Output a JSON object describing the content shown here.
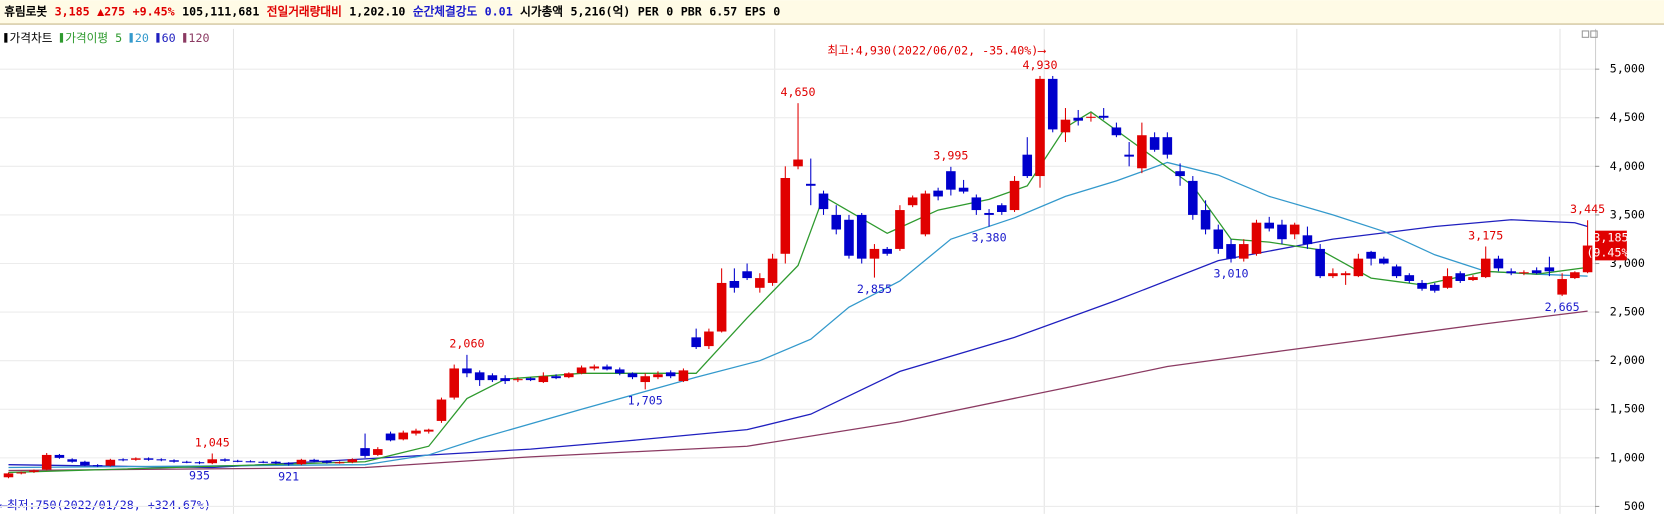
{
  "header": {
    "items": [
      {
        "text": "휴림로봇",
        "color": "#000000"
      },
      {
        "text": "3,185",
        "color": "#e00000"
      },
      {
        "text": "▲275",
        "color": "#e00000"
      },
      {
        "text": "+9.45%",
        "color": "#e00000"
      },
      {
        "text": "105,111,681",
        "color": "#000000"
      },
      {
        "text": "전일거래량대비",
        "color": "#e00000"
      },
      {
        "text": "1,202.10",
        "color": "#000000"
      },
      {
        "text": "순간체결강도",
        "color": "#1a1acc"
      },
      {
        "text": "0.01",
        "color": "#1a1acc"
      },
      {
        "text": "시가총액",
        "color": "#000000"
      },
      {
        "text": "5,216(억)",
        "color": "#000000"
      },
      {
        "text": "PER",
        "color": "#000000"
      },
      {
        "text": "0",
        "color": "#000000"
      },
      {
        "text": "PBR",
        "color": "#000000"
      },
      {
        "text": "6.57",
        "color": "#000000"
      },
      {
        "text": "EPS",
        "color": "#000000"
      },
      {
        "text": "0",
        "color": "#000000"
      }
    ]
  },
  "chart_data": {
    "type": "candlestick",
    "ylim": [
      424,
      5415
    ],
    "yticks": [
      500,
      {
        "value": 1000,
        "label": "1,000"
      },
      {
        "value": 1500,
        "label": "1,500"
      },
      {
        "value": 2000,
        "label": "2,000"
      },
      {
        "value": 2500,
        "label": "2,500"
      },
      {
        "value": 3000,
        "label": "3,000"
      },
      {
        "value": 3500,
        "label": "3,500"
      },
      {
        "value": 4000,
        "label": "4,000"
      },
      {
        "value": 4500,
        "label": "4,500"
      },
      {
        "value": 5000,
        "label": "5,000"
      }
    ],
    "grid": true,
    "candles": {
      "name": "가격차트",
      "color": "#000000",
      "up_color": "#e00000",
      "down_color": "#0000cc",
      "open": [
        800,
        840,
        855,
        880,
        1030,
        985,
        960,
        925,
        920,
        985,
        980,
        995,
        985,
        975,
        960,
        955,
        945,
        985,
        970,
        965,
        960,
        960,
        945,
        935,
        980,
        965,
        950,
        955,
        1100,
        1030,
        1250,
        1190,
        1250,
        1270,
        1380,
        1620,
        1920,
        1880,
        1850,
        1820,
        1800,
        1820,
        1780,
        1840,
        1830,
        1870,
        1920,
        1940,
        1910,
        1870,
        1780,
        1830,
        1880,
        1790,
        2240,
        2150,
        2300,
        2820,
        2920,
        2750,
        2800,
        3100,
        4000,
        3820,
        3720,
        3500,
        3450,
        3500,
        3050,
        3150,
        3150,
        3600,
        3300,
        3750,
        3950,
        3780,
        3680,
        3520,
        3600,
        3550,
        4120,
        3900,
        4900,
        4350,
        4500,
        4500,
        4520,
        4400,
        4120,
        3980,
        4300,
        4300,
        3950,
        3850,
        3550,
        3350,
        3200,
        3050,
        3100,
        3420,
        3400,
        3300,
        3290,
        3150,
        2870,
        2880,
        2870,
        3120,
        3050,
        2970,
        2880,
        2800,
        2780,
        2750,
        2900,
        2830,
        2860,
        3050,
        2920,
        2900,
        2930,
        2960,
        2680,
        2850,
        2910
      ],
      "high": [
        850,
        860,
        880,
        1050,
        1040,
        995,
        970,
        935,
        990,
        995,
        1005,
        1005,
        995,
        985,
        970,
        965,
        1045,
        995,
        980,
        975,
        970,
        970,
        955,
        990,
        990,
        975,
        965,
        995,
        1250,
        1110,
        1270,
        1280,
        1300,
        1300,
        1620,
        1960,
        2060,
        1900,
        1870,
        1850,
        1830,
        1830,
        1880,
        1860,
        1880,
        1950,
        1960,
        1960,
        1930,
        1880,
        1870,
        1890,
        1900,
        1920,
        2330,
        2330,
        2950,
        2950,
        3000,
        2900,
        3100,
        4000,
        4650,
        4080,
        3750,
        3600,
        3500,
        3520,
        3200,
        3170,
        3600,
        3700,
        3750,
        3780,
        3995,
        3860,
        3710,
        3560,
        3620,
        3900,
        4300,
        4930,
        4930,
        4600,
        4580,
        4550,
        4600,
        4450,
        4250,
        4450,
        4350,
        4350,
        4030,
        3900,
        3650,
        3400,
        3250,
        3250,
        3450,
        3480,
        3450,
        3420,
        3380,
        3200,
        2950,
        2920,
        3100,
        3130,
        3070,
        2990,
        2900,
        2830,
        2800,
        2950,
        2920,
        2880,
        3175,
        3080,
        2950,
        2930,
        2960,
        3070,
        2900,
        2920,
        3445
      ],
      "low": [
        790,
        830,
        845,
        870,
        990,
        950,
        915,
        905,
        910,
        965,
        970,
        970,
        965,
        950,
        945,
        935,
        935,
        960,
        955,
        955,
        945,
        935,
        921,
        925,
        955,
        940,
        940,
        945,
        1000,
        1020,
        1170,
        1180,
        1230,
        1250,
        1360,
        1600,
        1830,
        1740,
        1780,
        1760,
        1780,
        1790,
        1770,
        1810,
        1820,
        1860,
        1900,
        1900,
        1850,
        1810,
        1705,
        1810,
        1820,
        1780,
        2120,
        2120,
        2290,
        2700,
        2830,
        2700,
        2770,
        3000,
        3970,
        3600,
        3500,
        3300,
        3050,
        3000,
        2855,
        3080,
        3130,
        3580,
        3280,
        3650,
        3700,
        3720,
        3500,
        3380,
        3500,
        3530,
        3880,
        3780,
        4350,
        4250,
        4420,
        4460,
        4480,
        4300,
        4000,
        3930,
        4150,
        4080,
        3800,
        3450,
        3300,
        3100,
        3010,
        3020,
        3080,
        3330,
        3200,
        3250,
        3150,
        2850,
        2850,
        2780,
        2860,
        2980,
        2990,
        2850,
        2800,
        2720,
        2700,
        2740,
        2800,
        2820,
        2850,
        2920,
        2880,
        2880,
        2890,
        2870,
        2665,
        2840,
        2900
      ],
      "close": [
        840,
        850,
        870,
        1030,
        1000,
        960,
        925,
        915,
        980,
        975,
        995,
        980,
        975,
        960,
        955,
        945,
        985,
        970,
        965,
        960,
        955,
        945,
        935,
        980,
        965,
        950,
        955,
        985,
        1020,
        1090,
        1180,
        1260,
        1280,
        1290,
        1600,
        1920,
        1870,
        1800,
        1800,
        1790,
        1810,
        1800,
        1840,
        1820,
        1870,
        1930,
        1940,
        1910,
        1870,
        1830,
        1840,
        1860,
        1840,
        1900,
        2140,
        2300,
        2800,
        2750,
        2850,
        2850,
        3050,
        3880,
        4070,
        3800,
        3560,
        3350,
        3080,
        3050,
        3150,
        3100,
        3550,
        3680,
        3720,
        3690,
        3760,
        3740,
        3550,
        3500,
        3530,
        3850,
        3900,
        4900,
        4380,
        4480,
        4470,
        4510,
        4500,
        4320,
        4100,
        4320,
        4170,
        4120,
        3900,
        3500,
        3350,
        3150,
        3050,
        3200,
        3420,
        3360,
        3250,
        3400,
        3200,
        2870,
        2900,
        2900,
        3050,
        3050,
        3000,
        2870,
        2820,
        2740,
        2720,
        2870,
        2820,
        2860,
        3050,
        2950,
        2900,
        2910,
        2900,
        2920,
        2840,
        2910,
        3185
      ]
    },
    "moving_averages": [
      {
        "name": "가격이평 5",
        "color": "#2e9a2e",
        "x": [
          0,
          28,
          33,
          36,
          39,
          45,
          54,
          58,
          62,
          64,
          69,
          73,
          77,
          80,
          83,
          85,
          89,
          93,
          96,
          99,
          103,
          107,
          111,
          116,
          120,
          124
        ],
        "values": [
          850,
          960,
          1120,
          1610,
          1810,
          1870,
          1870,
          2440,
          2980,
          3690,
          3310,
          3550,
          3660,
          3800,
          4400,
          4560,
          4180,
          3800,
          3250,
          3220,
          3140,
          2850,
          2780,
          2920,
          2890,
          2960
        ]
      },
      {
        "name": "20",
        "color": "#3399cc",
        "x": [
          0,
          28,
          33,
          37,
          45,
          54,
          59,
          63,
          66,
          70,
          74,
          79,
          83,
          87,
          91,
          95,
          99,
          104,
          108,
          112,
          116,
          120,
          124
        ],
        "values": [
          900,
          930,
          1030,
          1200,
          1500,
          1830,
          2000,
          2220,
          2550,
          2820,
          3250,
          3470,
          3690,
          3850,
          4040,
          3910,
          3690,
          3500,
          3330,
          3090,
          2920,
          2890,
          2870
        ]
      },
      {
        "name": "60",
        "color": "#1f1fbf",
        "x": [
          0,
          16,
          28,
          41,
          49,
          58,
          63,
          70,
          79,
          87,
          95,
          104,
          112,
          118,
          123,
          124
        ],
        "values": [
          930,
          900,
          990,
          1090,
          1180,
          1290,
          1450,
          1890,
          2240,
          2620,
          3030,
          3250,
          3380,
          3450,
          3420,
          3380
        ]
      },
      {
        "name": "120",
        "color": "#8b3a62",
        "x": [
          0,
          28,
          41,
          58,
          70,
          83,
          91,
          100,
          108,
          116,
          124
        ],
        "values": [
          870,
          900,
          1010,
          1120,
          1370,
          1720,
          1940,
          2100,
          2240,
          2380,
          2510
        ]
      }
    ],
    "point_labels": [
      {
        "label": "1,045",
        "value": 1045,
        "candle": 16,
        "position": "above",
        "color": "#e00000"
      },
      {
        "label": "935",
        "value": 935,
        "candle": 15,
        "position": "below",
        "color": "#1a1acc"
      },
      {
        "label": "921",
        "value": 921,
        "candle": 22,
        "position": "below",
        "color": "#1a1acc"
      },
      {
        "label": "2,060",
        "value": 2060,
        "candle": 36,
        "position": "above",
        "color": "#e00000"
      },
      {
        "label": "1,705",
        "value": 1705,
        "candle": 50,
        "position": "below",
        "color": "#1a1acc"
      },
      {
        "label": "4,650",
        "value": 4650,
        "candle": 62,
        "position": "above",
        "color": "#e00000"
      },
      {
        "label": "2,855",
        "value": 2855,
        "candle": 68,
        "position": "below",
        "color": "#1a1acc"
      },
      {
        "label": "3,995",
        "value": 3995,
        "candle": 74,
        "position": "above",
        "color": "#e00000"
      },
      {
        "label": "3,380",
        "value": 3380,
        "candle": 77,
        "position": "below",
        "color": "#1a1acc"
      },
      {
        "label": "4,930",
        "value": 4930,
        "candle": 81,
        "position": "above",
        "color": "#e00000"
      },
      {
        "label": "3,010",
        "value": 3010,
        "candle": 96,
        "position": "below",
        "color": "#1a1acc"
      },
      {
        "label": "3,175",
        "value": 3175,
        "candle": 116,
        "position": "above",
        "color": "#e00000"
      },
      {
        "label": "2,665",
        "value": 2665,
        "candle": 122,
        "position": "below",
        "color": "#1a1acc"
      },
      {
        "label": "3,445",
        "value": 3445,
        "candle": 124,
        "position": "above",
        "color": "#e00000"
      }
    ],
    "extremes": [
      {
        "text": "최고:4,930(2022/06/02, -35.40%)⟶",
        "color": "#e00000"
      },
      {
        "text": "⟵최저:750(2022/01/28, +324.67%)",
        "color": "#1a1acc"
      }
    ],
    "current_tag": {
      "value": 3185,
      "label": "3,185",
      "change": "(9.45%)",
      "color": "#e00000"
    }
  }
}
